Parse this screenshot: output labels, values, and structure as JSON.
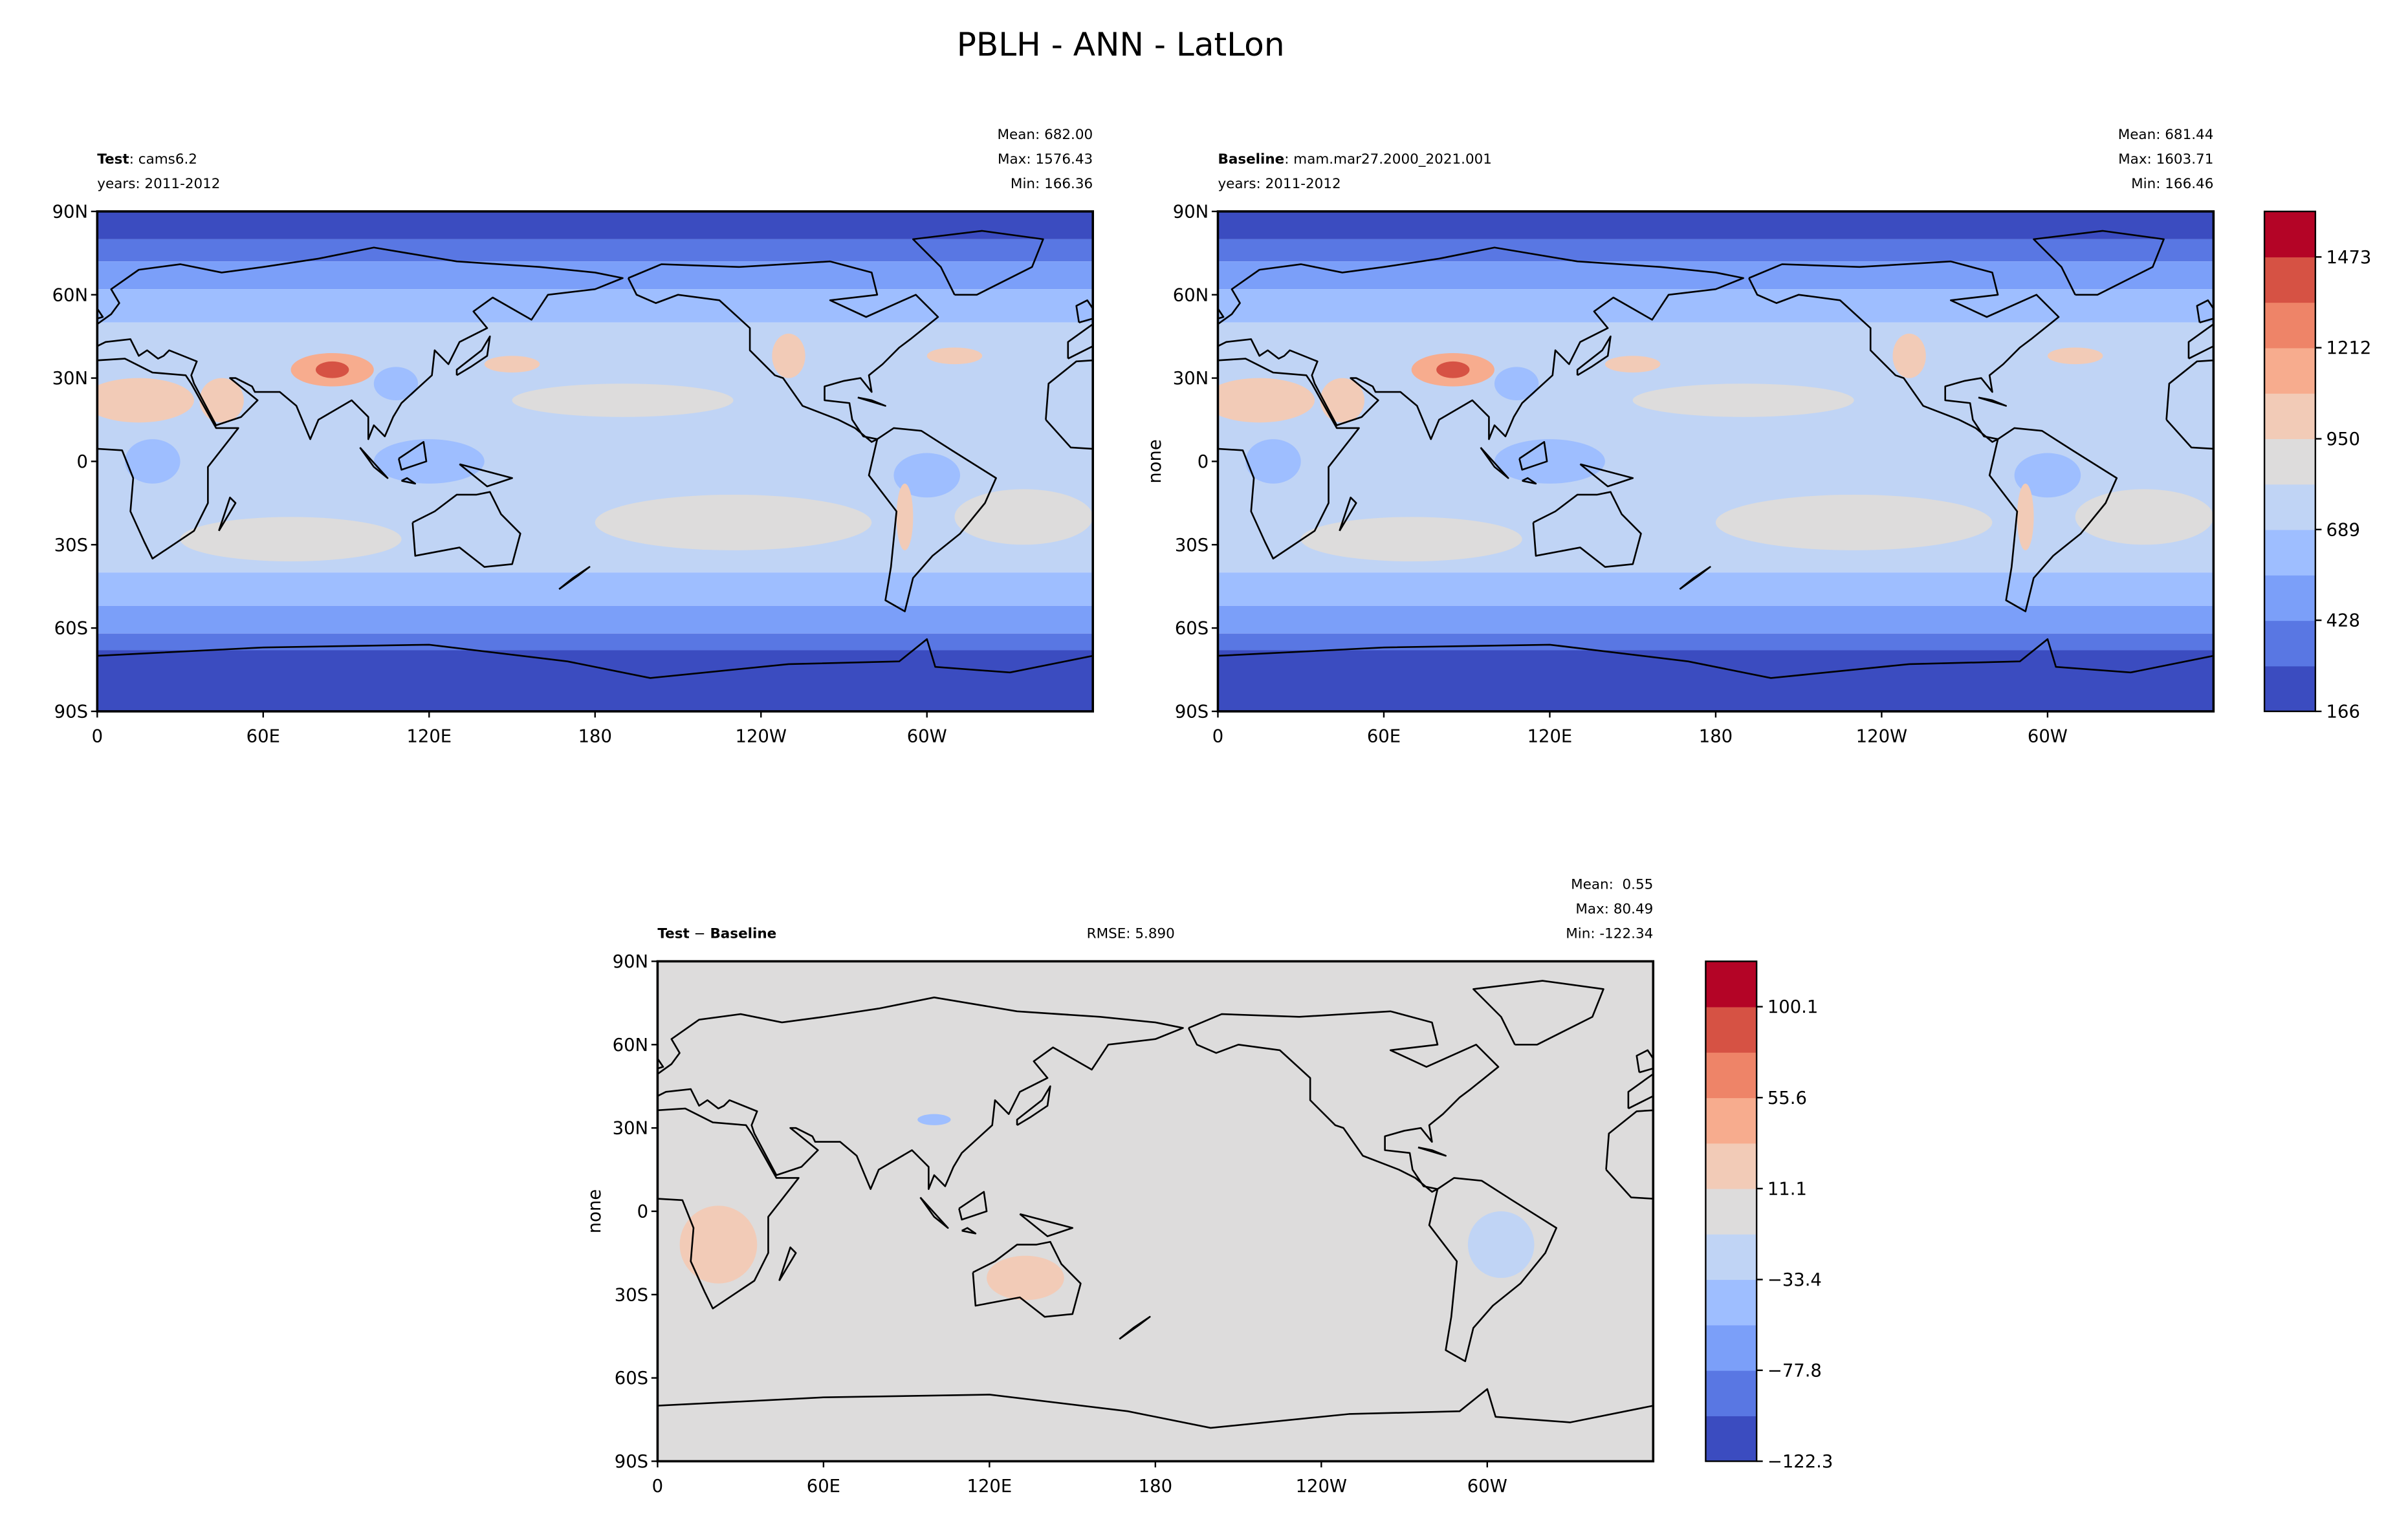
{
  "title": "PBLH - ANN - LatLon",
  "panels": [
    {
      "heading": [
        "Test",
        ": cams6.2"
      ],
      "years": "years: 2011-2012",
      "stats": [
        "Mean: 682.00",
        "Max: 1576.43",
        "Min: 166.36"
      ]
    },
    {
      "heading": [
        "Baseline",
        ": mam.mar27.2000_2021.001"
      ],
      "years": "years: 2011-2012",
      "stats": [
        "Mean: 681.44",
        "Max: 1603.71",
        "Min: 166.46"
      ],
      "ylabel": "none"
    },
    {
      "heading": [
        "Test",
        " − ",
        "Baseline"
      ],
      "rmse": "RMSE: 5.890",
      "stats": [
        "Mean:  0.55",
        "Max: 80.49",
        "Min: -122.34"
      ],
      "ylabel": "none"
    }
  ],
  "map_axes": {
    "xlim": [
      0,
      360
    ],
    "ylim": [
      -90,
      90
    ],
    "xticks": [
      0,
      {
        "value": 60,
        "label": "60E"
      },
      {
        "value": 120,
        "label": "120E"
      },
      180,
      {
        "value": 240,
        "label": "120W"
      },
      {
        "value": 300,
        "label": "60W"
      }
    ],
    "yticks": [
      {
        "value": 90,
        "label": "90N"
      },
      {
        "value": 60,
        "label": "60N"
      },
      {
        "value": 30,
        "label": "30N"
      },
      0,
      {
        "value": -30,
        "label": "30S"
      },
      {
        "value": -60,
        "label": "60S"
      },
      {
        "value": -90,
        "label": "90S"
      }
    ]
  },
  "colorbars": [
    {
      "lim": [
        166,
        1604
      ],
      "ticks": [
        166,
        428,
        689,
        950,
        1212,
        1473
      ],
      "colors": [
        "#3b4cc0",
        "#5977e3",
        "#7b9ff9",
        "#9ebeff",
        "#c0d4f5",
        "#dddcdc",
        "#f2cbb7",
        "#f7ac8e",
        "#ee8468",
        "#d65244",
        "#b40426"
      ]
    },
    {
      "lim": [
        -122.3,
        122.3
      ],
      "ticks": [
        {
          "value": -122.3,
          "label": "−122.3"
        },
        {
          "value": -77.8,
          "label": "−77.8"
        },
        {
          "value": -33.4,
          "label": "−33.4"
        },
        11.1,
        55.6,
        100.1
      ],
      "colors": [
        "#3b4cc0",
        "#5977e3",
        "#7b9ff9",
        "#9ebeff",
        "#c0d4f5",
        "#dddcdc",
        "#f2cbb7",
        "#f7ac8e",
        "#ee8468",
        "#d65244",
        "#b40426"
      ]
    }
  ]
}
